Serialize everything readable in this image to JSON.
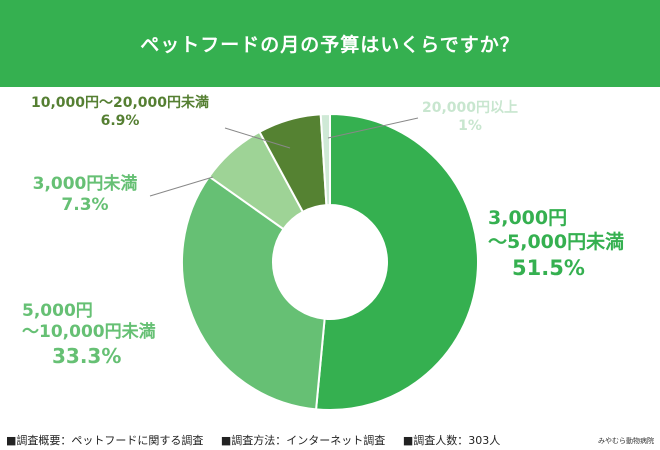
{
  "header": {
    "title": "ペットフードの月の予算はいくらですか？",
    "bg_color": "#35b050"
  },
  "chart_data": {
    "type": "pie",
    "donut": true,
    "title": "ペットフードの月の予算はいくらですか？",
    "categories": [
      "3,000円～5,000円未満",
      "5,000円～10,000円未満",
      "3,000円未満",
      "10,000円～20,000円未満",
      "20,000円以上"
    ],
    "values": [
      51.5,
      33.3,
      7.3,
      6.9,
      1.0
    ],
    "unit": "%",
    "colors": [
      "#35b050",
      "#66c074",
      "#9ed396",
      "#558232",
      "#cfe9d6"
    ],
    "start_angle_deg": 0,
    "direction": "clockwise",
    "legend": "none (direct labels)"
  },
  "labels": [
    {
      "line1": "3,000円",
      "line2": "～5,000円未満",
      "pct": "51.5%",
      "color": "#35b050"
    },
    {
      "line1": "5,000円",
      "line2": "～10,000円未満",
      "pct": "33.3%",
      "color": "#66c074"
    },
    {
      "line1": "3,000円未満",
      "pct": "7.3%",
      "color": "#66c074"
    },
    {
      "line1": "10,000円～20,000円未満",
      "pct": "6.9%",
      "color": "#557f32"
    },
    {
      "line1": "20,000円以上",
      "pct": "1%",
      "color": "#c8e6cf"
    }
  ],
  "footer": {
    "summary": "■調査概要：ペットフードに関する調査",
    "method": "■調査方法：インターネット調査",
    "count": "■調査人数：303人",
    "credit": "みやむら動物病院"
  }
}
